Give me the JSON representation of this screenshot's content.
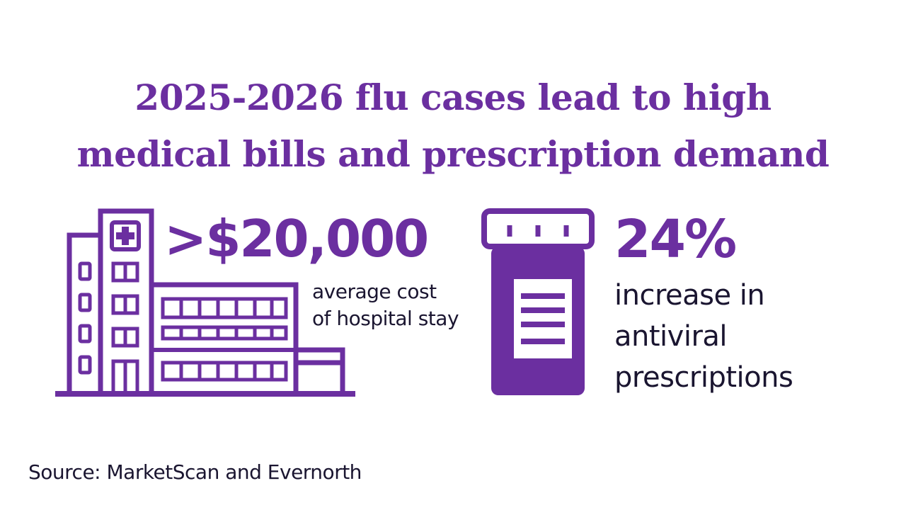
{
  "headline": {
    "line1": "2025-2026 flu cases lead to high",
    "line2": "medical bills and prescription demand"
  },
  "stats": [
    {
      "icon": "hospital-icon",
      "value": ">$20,000",
      "description": [
        "average cost",
        "of hospital stay"
      ]
    },
    {
      "icon": "pill-bottle-icon",
      "value": "24%",
      "description": [
        "increase in",
        "antiviral",
        "prescriptions"
      ]
    }
  ],
  "source": "Source: MarketScan and Evernorth",
  "colors": {
    "accent": "#6b2fa0",
    "text": "#1a1530",
    "background": "#ffffff"
  }
}
